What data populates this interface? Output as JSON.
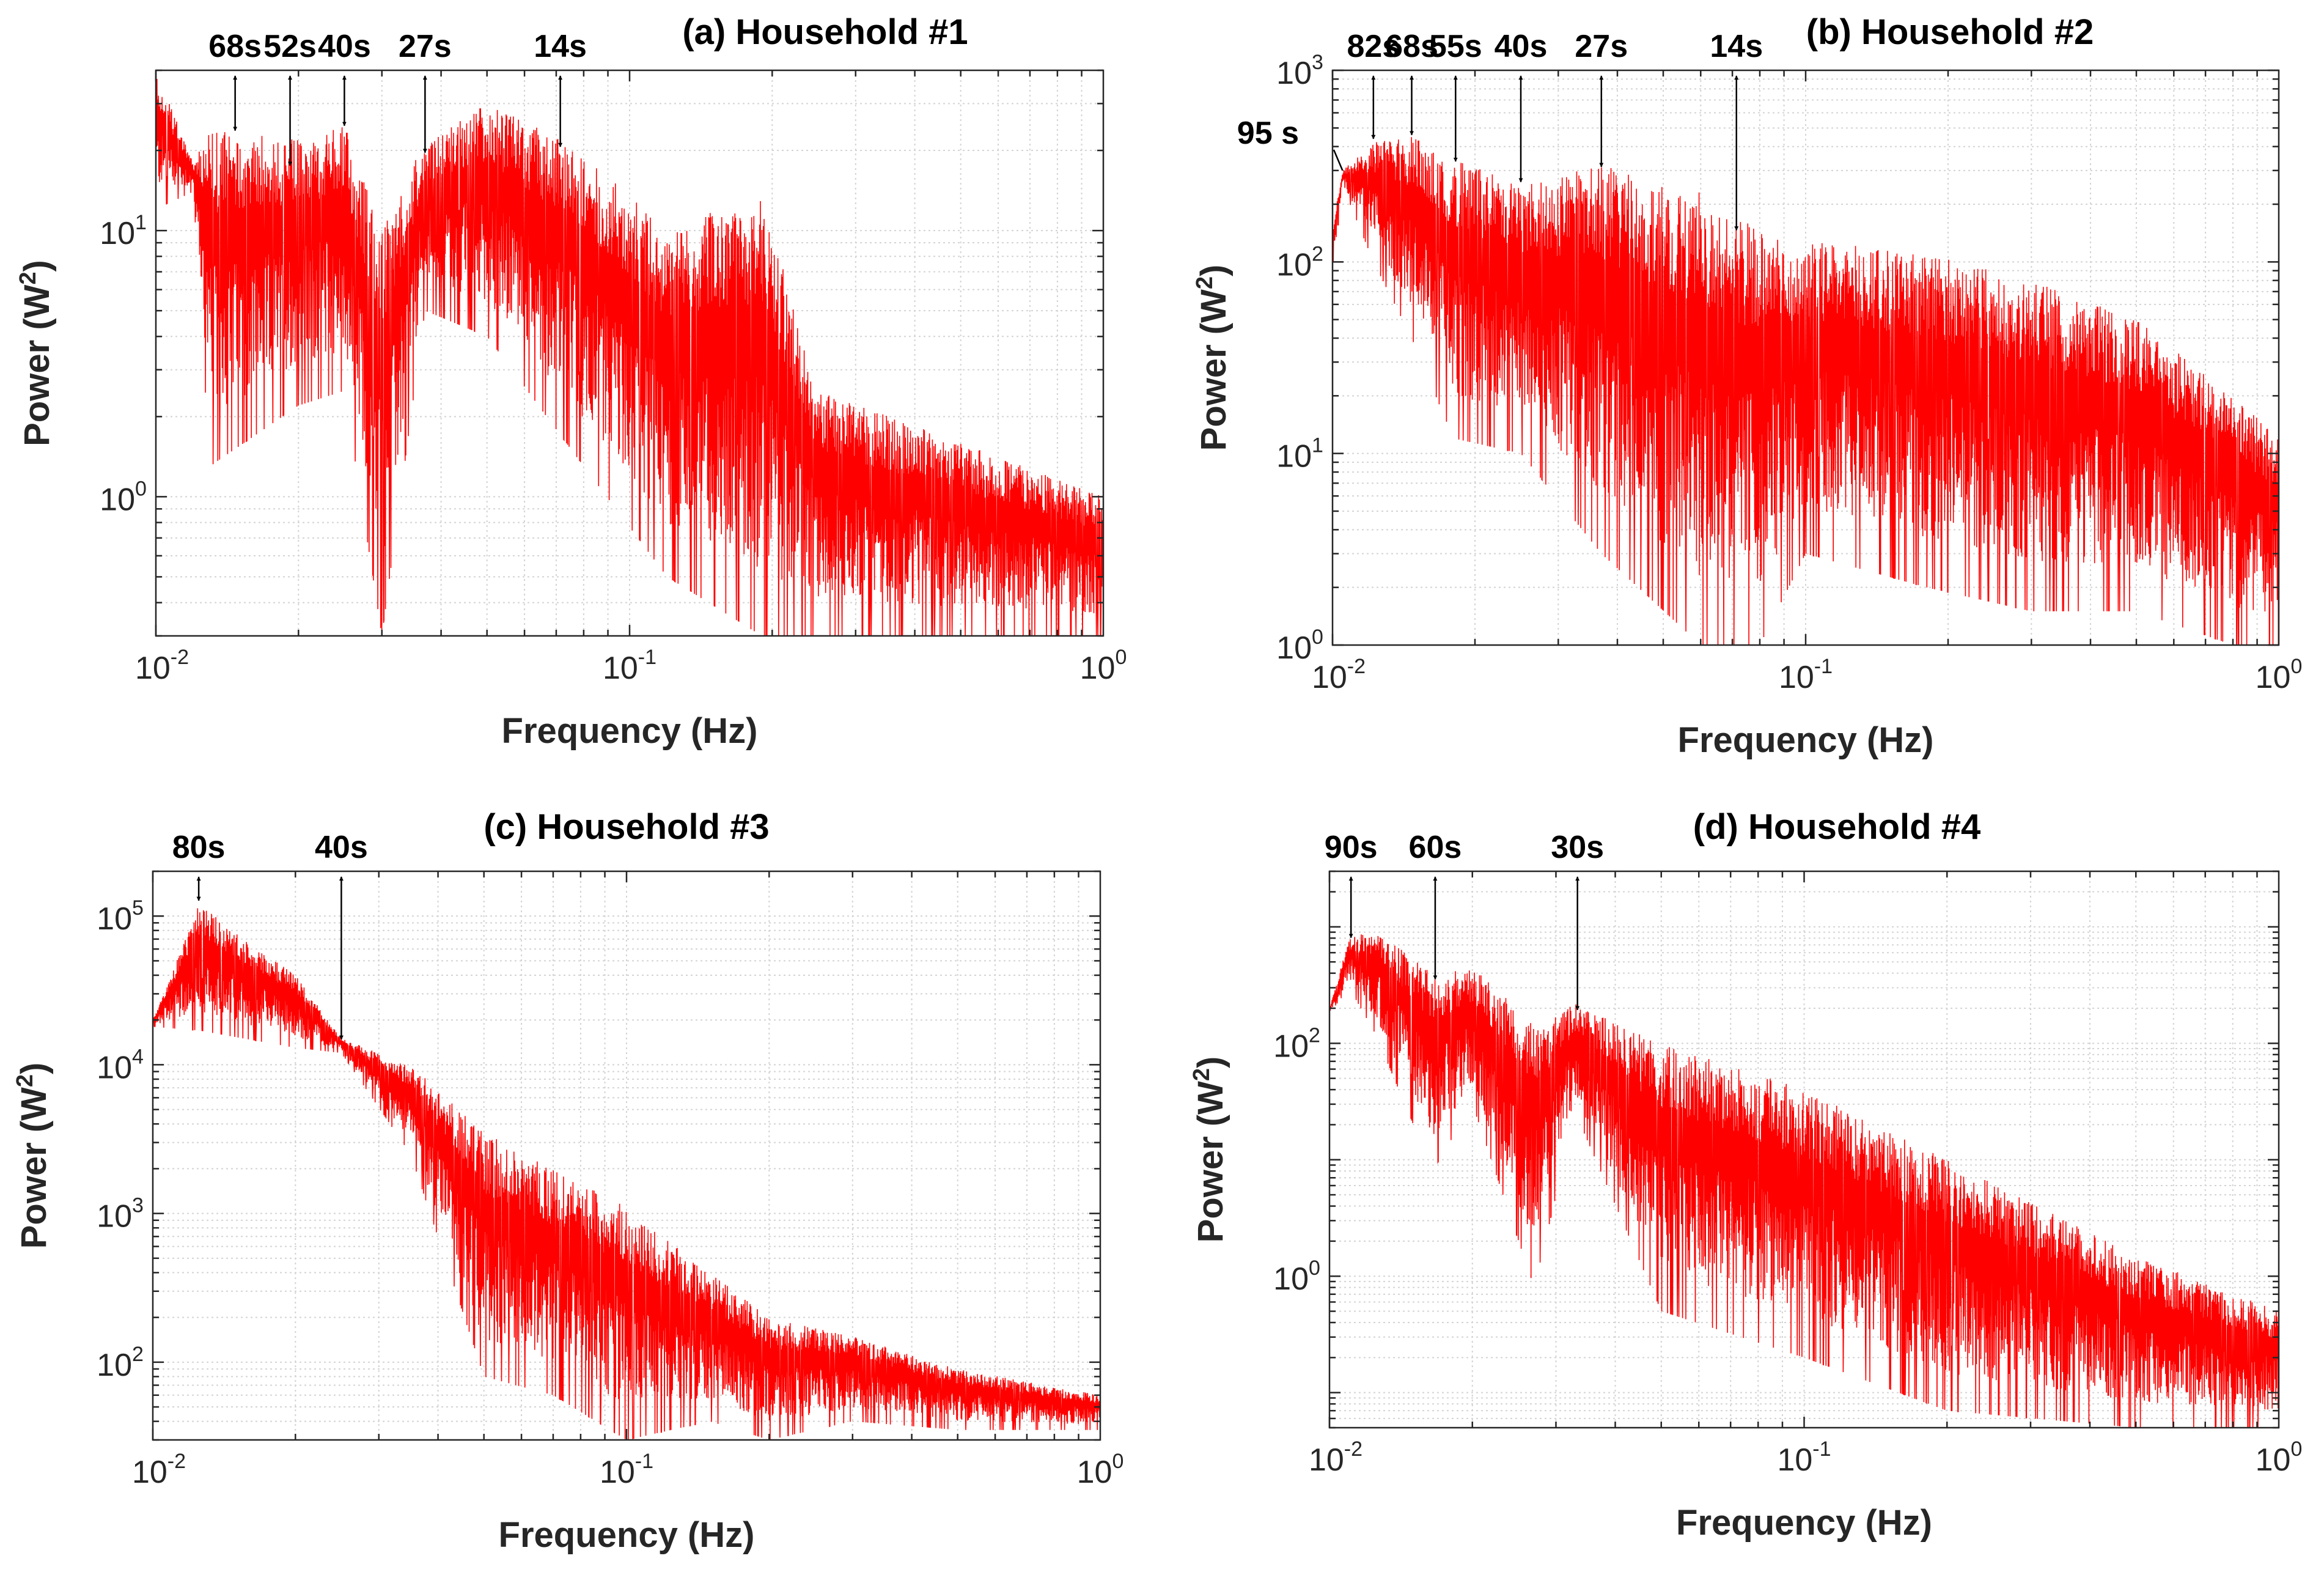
{
  "chart_data": [
    {
      "type": "line",
      "title": "(a) Household #1",
      "xlabel": "Frequency (Hz)",
      "ylabel_main": "Power (W",
      "ylabel_sup": "2",
      "ylabel_close": ")",
      "xscale": "log",
      "yscale": "log",
      "xlim": [
        0.01,
        1
      ],
      "ylim": [
        0.3,
        40
      ],
      "grid": true,
      "xticks": [
        {
          "base": "10",
          "exp": "-2",
          "value": 0.01
        },
        {
          "base": "10",
          "exp": "-1",
          "value": 0.1
        },
        {
          "base": "10",
          "exp": "0",
          "value": 1
        }
      ],
      "yticks": [
        {
          "base": "10",
          "exp": "0",
          "value": 1
        },
        {
          "base": "10",
          "exp": "1",
          "value": 10
        }
      ],
      "series_color": "#ff0000",
      "envelope": [
        {
          "f": 0.01,
          "hi": 40,
          "lo": 12
        },
        {
          "f": 0.012,
          "hi": 18,
          "lo": 14
        },
        {
          "f": 0.013,
          "hi": 24,
          "lo": 1.3
        },
        {
          "f": 0.02,
          "hi": 22,
          "lo": 2.2
        },
        {
          "f": 0.025,
          "hi": 25,
          "lo": 2.5
        },
        {
          "f": 0.03,
          "hi": 10,
          "lo": 0.3
        },
        {
          "f": 0.037,
          "hi": 22,
          "lo": 5
        },
        {
          "f": 0.05,
          "hi": 30,
          "lo": 4
        },
        {
          "f": 0.08,
          "hi": 20,
          "lo": 1.3
        },
        {
          "f": 0.12,
          "hi": 10,
          "lo": 0.5
        },
        {
          "f": 0.19,
          "hi": 14,
          "lo": 0.3
        },
        {
          "f": 0.25,
          "hi": 2.5,
          "lo": 0.3
        },
        {
          "f": 0.5,
          "hi": 1.6,
          "lo": 0.3
        },
        {
          "f": 1.0,
          "hi": 1.0,
          "lo": 0.3
        }
      ],
      "annotations": [
        {
          "label": "68s",
          "f": 0.0147,
          "p": 23
        },
        {
          "label": "52s",
          "f": 0.0192,
          "p": 17
        },
        {
          "label": "40s",
          "f": 0.025,
          "p": 24
        },
        {
          "label": "27s",
          "f": 0.037,
          "p": 19
        },
        {
          "label": "14s",
          "f": 0.0714,
          "p": 20
        }
      ]
    },
    {
      "type": "line",
      "title": "(b) Household #2",
      "xlabel": "Frequency (Hz)",
      "ylabel_main": "Power (W",
      "ylabel_sup": "2",
      "ylabel_close": ")",
      "xscale": "log",
      "yscale": "log",
      "xlim": [
        0.01,
        1
      ],
      "ylim": [
        1,
        1000
      ],
      "grid": true,
      "xticks": [
        {
          "base": "10",
          "exp": "-2",
          "value": 0.01
        },
        {
          "base": "10",
          "exp": "-1",
          "value": 0.1
        },
        {
          "base": "10",
          "exp": "0",
          "value": 1
        }
      ],
      "yticks": [
        {
          "base": "10",
          "exp": "0",
          "value": 1
        },
        {
          "base": "10",
          "exp": "1",
          "value": 10
        },
        {
          "base": "10",
          "exp": "2",
          "value": 100
        },
        {
          "base": "10",
          "exp": "3",
          "value": 1000
        }
      ],
      "series_color": "#ff0000",
      "envelope": [
        {
          "f": 0.01,
          "hi": 150,
          "lo": 80
        },
        {
          "f": 0.0105,
          "hi": 300,
          "lo": 250
        },
        {
          "f": 0.0122,
          "hi": 420,
          "lo": 100
        },
        {
          "f": 0.0147,
          "hi": 450,
          "lo": 40
        },
        {
          "f": 0.018,
          "hi": 350,
          "lo": 12
        },
        {
          "f": 0.025,
          "hi": 250,
          "lo": 10
        },
        {
          "f": 0.037,
          "hi": 320,
          "lo": 3
        },
        {
          "f": 0.06,
          "hi": 230,
          "lo": 1
        },
        {
          "f": 0.08,
          "hi": 150,
          "lo": 1
        },
        {
          "f": 0.1,
          "hi": 130,
          "lo": 3
        },
        {
          "f": 0.18,
          "hi": 110,
          "lo": 2
        },
        {
          "f": 0.3,
          "hi": 80,
          "lo": 1.5
        },
        {
          "f": 0.5,
          "hi": 50,
          "lo": 1.5
        },
        {
          "f": 0.8,
          "hi": 20,
          "lo": 1
        },
        {
          "f": 1.0,
          "hi": 12,
          "lo": 1
        }
      ],
      "annotations": [
        {
          "label": "95 s",
          "f": 0.0105,
          "p": 300
        },
        {
          "label": "82s",
          "f": 0.0122,
          "p": 420
        },
        {
          "label": "68s",
          "f": 0.0147,
          "p": 440
        },
        {
          "label": "55s",
          "f": 0.0182,
          "p": 320
        },
        {
          "label": "40s",
          "f": 0.025,
          "p": 250
        },
        {
          "label": "27s",
          "f": 0.037,
          "p": 300
        },
        {
          "label": "14s",
          "f": 0.0714,
          "p": 140
        }
      ]
    },
    {
      "type": "line",
      "title": "(c) Household #3",
      "xlabel": "Frequency (Hz)",
      "ylabel_main": "Power (W",
      "ylabel_sup": "2",
      "ylabel_close": ")",
      "xscale": "log",
      "yscale": "log",
      "xlim": [
        0.01,
        1
      ],
      "ylim": [
        30,
        200000
      ],
      "grid": true,
      "xticks": [
        {
          "base": "10",
          "exp": "-2",
          "value": 0.01
        },
        {
          "base": "10",
          "exp": "-1",
          "value": 0.1
        },
        {
          "base": "10",
          "exp": "0",
          "value": 1
        }
      ],
      "yticks": [
        {
          "base": "10",
          "exp": "2",
          "value": 100
        },
        {
          "base": "10",
          "exp": "3",
          "value": 1000
        },
        {
          "base": "10",
          "exp": "4",
          "value": 10000
        },
        {
          "base": "10",
          "exp": "5",
          "value": 100000
        }
      ],
      "series_color": "#ff0000",
      "envelope": [
        {
          "f": 0.01,
          "hi": 20000,
          "lo": 18000
        },
        {
          "f": 0.0125,
          "hi": 120000,
          "lo": 17000
        },
        {
          "f": 0.02,
          "hi": 40000,
          "lo": 13000
        },
        {
          "f": 0.025,
          "hi": 15000,
          "lo": 12000
        },
        {
          "f": 0.035,
          "hi": 10000,
          "lo": 2500
        },
        {
          "f": 0.05,
          "hi": 3500,
          "lo": 80
        },
        {
          "f": 0.07,
          "hi": 2000,
          "lo": 60
        },
        {
          "f": 0.1,
          "hi": 1100,
          "lo": 30
        },
        {
          "f": 0.15,
          "hi": 400,
          "lo": 40
        },
        {
          "f": 0.2,
          "hi": 200,
          "lo": 30
        },
        {
          "f": 0.3,
          "hi": 150,
          "lo": 40
        },
        {
          "f": 0.5,
          "hi": 90,
          "lo": 35
        },
        {
          "f": 1.0,
          "hi": 60,
          "lo": 35
        }
      ],
      "annotations": [
        {
          "label": "80s",
          "f": 0.0125,
          "p": 120000
        },
        {
          "label": "40s",
          "f": 0.025,
          "p": 14000
        }
      ]
    },
    {
      "type": "line",
      "title": "(d) Household #4",
      "xlabel": "Frequency (Hz)",
      "ylabel_main": "Power (W",
      "ylabel_sup": "2",
      "ylabel_close": ")",
      "xscale": "log",
      "yscale": "log",
      "xlim": [
        0.01,
        1
      ],
      "ylim": [
        0.05,
        3000
      ],
      "grid": true,
      "xticks": [
        {
          "base": "10",
          "exp": "-2",
          "value": 0.01
        },
        {
          "base": "10",
          "exp": "-1",
          "value": 0.1
        },
        {
          "base": "10",
          "exp": "0",
          "value": 1
        }
      ],
      "yticks": [
        {
          "base": "10",
          "exp": "0",
          "value": 1
        },
        {
          "base": "10",
          "exp": "2",
          "value": 100
        }
      ],
      "series_color": "#ff0000",
      "envelope": [
        {
          "f": 0.01,
          "hi": 200,
          "lo": 180
        },
        {
          "f": 0.011,
          "hi": 800,
          "lo": 300
        },
        {
          "f": 0.0125,
          "hi": 950,
          "lo": 120
        },
        {
          "f": 0.0165,
          "hi": 400,
          "lo": 8
        },
        {
          "f": 0.02,
          "hi": 450,
          "lo": 30
        },
        {
          "f": 0.027,
          "hi": 150,
          "lo": 0.8
        },
        {
          "f": 0.033,
          "hi": 220,
          "lo": 25
        },
        {
          "f": 0.05,
          "hi": 100,
          "lo": 0.5
        },
        {
          "f": 0.1,
          "hi": 40,
          "lo": 0.2
        },
        {
          "f": 0.2,
          "hi": 10,
          "lo": 0.07
        },
        {
          "f": 0.5,
          "hi": 1.5,
          "lo": 0.05
        },
        {
          "f": 1.0,
          "hi": 0.5,
          "lo": 0.05
        }
      ],
      "annotations": [
        {
          "label": "90s",
          "f": 0.0111,
          "p": 750
        },
        {
          "label": "60s",
          "f": 0.0167,
          "p": 330
        },
        {
          "label": "30s",
          "f": 0.0333,
          "p": 180
        }
      ]
    }
  ]
}
